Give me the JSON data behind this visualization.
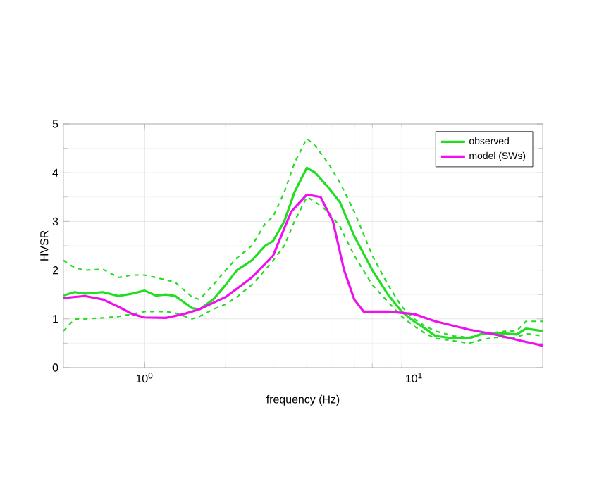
{
  "chart_data": {
    "type": "line",
    "xlabel": "frequency (Hz)",
    "ylabel": "HVSR",
    "log": "x",
    "xlim": [
      0.5,
      30
    ],
    "ylim": [
      0,
      5
    ],
    "xticks": [
      {
        "value": 1,
        "label": "10$^{0}$"
      },
      {
        "value": 10,
        "label": "10$^{1}$"
      }
    ],
    "yticks": [
      0,
      1,
      2,
      3,
      4,
      5
    ],
    "grid": true,
    "legend": "top right",
    "line_style": "solid",
    "marker": "none",
    "series": [
      {
        "color": "#22dd22",
        "line_style": "dashed",
        "x": [
          0.5,
          0.55,
          0.6,
          0.7,
          0.8,
          0.9,
          1.0,
          1.1,
          1.2,
          1.3,
          1.5,
          1.6,
          1.8,
          2.0,
          2.2,
          2.5,
          2.8,
          3.0,
          3.3,
          3.6,
          4.0,
          4.3,
          4.8,
          5.3,
          6,
          7,
          8,
          9,
          10,
          11,
          12,
          14,
          16,
          18,
          20,
          22,
          24,
          26,
          30
        ],
        "values": [
          2.2,
          2.05,
          2.0,
          2.02,
          1.85,
          1.9,
          1.9,
          1.85,
          1.8,
          1.75,
          1.45,
          1.4,
          1.7,
          2.0,
          2.25,
          2.5,
          2.95,
          3.1,
          3.6,
          4.2,
          4.7,
          4.55,
          4.2,
          3.8,
          3.2,
          2.3,
          1.7,
          1.25,
          1.0,
          0.85,
          0.75,
          0.65,
          0.62,
          0.7,
          0.72,
          0.75,
          0.75,
          0.95,
          0.95
        ]
      },
      {
        "color": "#22dd22",
        "line_style": "dashed",
        "x": [
          0.5,
          0.55,
          0.6,
          0.7,
          0.8,
          0.9,
          1.0,
          1.1,
          1.2,
          1.3,
          1.5,
          1.6,
          1.8,
          2.0,
          2.2,
          2.5,
          2.8,
          3.0,
          3.3,
          3.6,
          4.0,
          4.3,
          4.8,
          5.3,
          6,
          7,
          8,
          9,
          10,
          11,
          12,
          14,
          16,
          18,
          20,
          22,
          24,
          26,
          30
        ],
        "values": [
          0.75,
          1.0,
          1.0,
          1.02,
          1.05,
          1.1,
          1.15,
          1.15,
          1.15,
          1.12,
          1.0,
          1.05,
          1.2,
          1.3,
          1.45,
          1.7,
          2.0,
          2.2,
          2.5,
          3.0,
          3.5,
          3.4,
          3.2,
          2.9,
          2.3,
          1.7,
          1.35,
          1.05,
          0.85,
          0.7,
          0.6,
          0.55,
          0.5,
          0.58,
          0.62,
          0.62,
          0.62,
          0.7,
          0.65
        ]
      },
      {
        "name": "observed",
        "color": "#22dd22",
        "x": [
          0.5,
          0.55,
          0.6,
          0.7,
          0.8,
          0.9,
          1.0,
          1.1,
          1.2,
          1.3,
          1.5,
          1.6,
          1.8,
          2.0,
          2.2,
          2.5,
          2.8,
          3.0,
          3.3,
          3.6,
          4.0,
          4.3,
          4.8,
          5.3,
          6,
          7,
          8,
          9,
          10,
          11,
          12,
          14,
          16,
          18,
          20,
          22,
          24,
          26,
          30
        ],
        "values": [
          1.48,
          1.55,
          1.52,
          1.55,
          1.47,
          1.52,
          1.58,
          1.48,
          1.5,
          1.47,
          1.22,
          1.2,
          1.4,
          1.7,
          2.0,
          2.2,
          2.5,
          2.6,
          3.0,
          3.6,
          4.1,
          4.0,
          3.7,
          3.4,
          2.7,
          2.0,
          1.5,
          1.15,
          0.95,
          0.8,
          0.65,
          0.6,
          0.6,
          0.7,
          0.7,
          0.7,
          0.68,
          0.8,
          0.75
        ]
      },
      {
        "name": "model (SWs)",
        "color": "#ee11ee",
        "x": [
          0.5,
          0.6,
          0.7,
          0.8,
          0.9,
          1.0,
          1.2,
          1.4,
          1.6,
          2.0,
          2.5,
          3.0,
          3.5,
          4.0,
          4.5,
          5.0,
          5.5,
          6,
          6.5,
          8,
          10,
          12,
          16,
          20,
          25,
          30
        ],
        "values": [
          1.43,
          1.47,
          1.4,
          1.25,
          1.1,
          1.03,
          1.02,
          1.1,
          1.2,
          1.45,
          1.85,
          2.3,
          3.2,
          3.55,
          3.5,
          3.0,
          2.0,
          1.4,
          1.15,
          1.15,
          1.1,
          0.95,
          0.78,
          0.68,
          0.55,
          0.45
        ]
      }
    ]
  }
}
